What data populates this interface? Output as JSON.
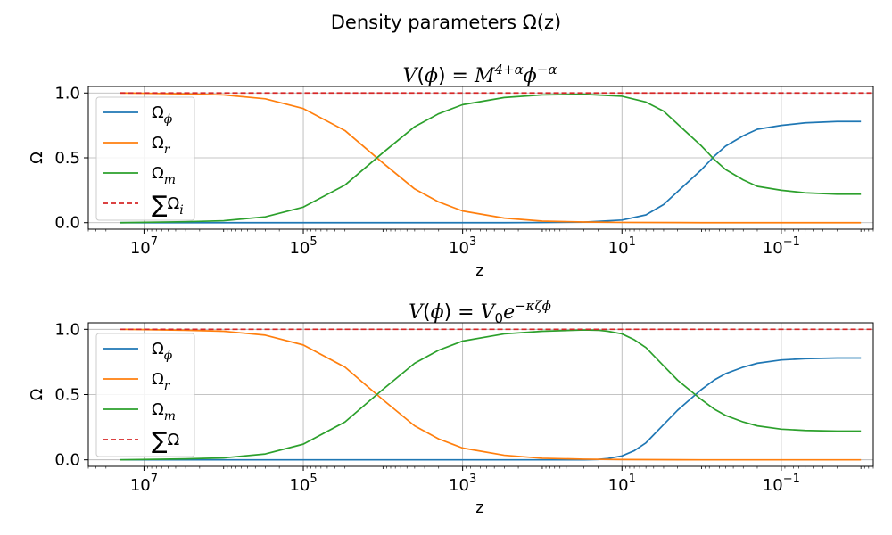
{
  "figure": {
    "suptitle": "Density parameters Ω(z)"
  },
  "colors": {
    "omega_phi": "#1f77b4",
    "omega_r": "#ff7f0e",
    "omega_m": "#2ca02c",
    "sum": "#d62728",
    "grid": "#b0b0b0"
  },
  "chart_data": [
    {
      "type": "line",
      "title": "V(ϕ) = M^(4+α) ϕ^(−α)",
      "xlabel": "z",
      "ylabel": "Ω",
      "xscale": "log",
      "x_reversed": true,
      "xlim": [
        50000000,
        0.007
      ],
      "ylim": [
        -0.05,
        1.05
      ],
      "xticks": [
        "10^7",
        "10^5",
        "10^3",
        "10^1",
        "10^−1"
      ],
      "yticks": [
        "0.0",
        "0.5",
        "1.0"
      ],
      "grid": true,
      "legend_position": "upper-left",
      "series": [
        {
          "name": "Ω_ϕ",
          "color": "#1f77b4",
          "style": "solid",
          "x": [
            20000000,
            10000,
            1000,
            300,
            100,
            30,
            10,
            5,
            3,
            2,
            1,
            0.7,
            0.5,
            0.3,
            0.2,
            0.1,
            0.05,
            0.02,
            0.01
          ],
          "y": [
            0.0,
            0.0,
            0.0,
            0.0,
            0.001,
            0.004,
            0.02,
            0.06,
            0.14,
            0.24,
            0.41,
            0.51,
            0.59,
            0.67,
            0.72,
            0.75,
            0.77,
            0.78,
            0.78
          ]
        },
        {
          "name": "Ω_r",
          "color": "#ff7f0e",
          "style": "solid",
          "x": [
            20000000,
            10000000,
            3000000,
            1000000,
            300000,
            100000,
            30000,
            10000,
            4000,
            2000,
            1000,
            300,
            100,
            30,
            10,
            1,
            0.1,
            0.01
          ],
          "y": [
            1.0,
            0.998,
            0.993,
            0.985,
            0.955,
            0.88,
            0.71,
            0.46,
            0.26,
            0.16,
            0.09,
            0.035,
            0.012,
            0.005,
            0.002,
            0.0,
            0.0,
            0.0
          ]
        },
        {
          "name": "Ω_m",
          "color": "#2ca02c",
          "style": "solid",
          "x": [
            20000000,
            3000000,
            1000000,
            300000,
            100000,
            30000,
            10000,
            4000,
            2000,
            1000,
            300,
            100,
            30,
            10,
            5,
            3,
            2,
            1,
            0.7,
            0.5,
            0.3,
            0.2,
            0.1,
            0.05,
            0.02,
            0.01
          ],
          "y": [
            0.0,
            0.007,
            0.015,
            0.045,
            0.12,
            0.29,
            0.54,
            0.74,
            0.84,
            0.91,
            0.965,
            0.985,
            0.99,
            0.975,
            0.93,
            0.86,
            0.76,
            0.59,
            0.49,
            0.41,
            0.33,
            0.28,
            0.25,
            0.23,
            0.22,
            0.22
          ]
        },
        {
          "name": "∑Ω_i",
          "color": "#d62728",
          "style": "dashed",
          "x": [
            20000000,
            0.007
          ],
          "y": [
            1.0,
            1.0
          ]
        }
      ]
    },
    {
      "type": "line",
      "title": "V(ϕ) = V₀ e^(−κζϕ)",
      "xlabel": "z",
      "ylabel": "Ω",
      "xscale": "log",
      "x_reversed": true,
      "xlim": [
        50000000,
        0.007
      ],
      "ylim": [
        -0.05,
        1.05
      ],
      "xticks": [
        "10^7",
        "10^5",
        "10^3",
        "10^1",
        "10^−1"
      ],
      "yticks": [
        "0.0",
        "0.5",
        "1.0"
      ],
      "grid": true,
      "legend_position": "upper-left",
      "series": [
        {
          "name": "Ω_ϕ",
          "color": "#1f77b4",
          "style": "solid",
          "x": [
            20000000,
            100,
            30,
            20,
            15,
            10,
            7,
            5,
            3,
            2,
            1,
            0.7,
            0.5,
            0.3,
            0.2,
            0.1,
            0.05,
            0.02,
            0.01
          ],
          "y": [
            0.0,
            0.0,
            0.0,
            0.003,
            0.01,
            0.03,
            0.07,
            0.13,
            0.27,
            0.38,
            0.54,
            0.61,
            0.66,
            0.71,
            0.74,
            0.765,
            0.775,
            0.78,
            0.78
          ]
        },
        {
          "name": "Ω_r",
          "color": "#ff7f0e",
          "style": "solid",
          "x": [
            20000000,
            10000000,
            3000000,
            1000000,
            300000,
            100000,
            30000,
            10000,
            4000,
            2000,
            1000,
            300,
            100,
            30,
            10,
            1,
            0.1,
            0.01
          ],
          "y": [
            1.0,
            0.998,
            0.993,
            0.985,
            0.955,
            0.88,
            0.71,
            0.46,
            0.26,
            0.16,
            0.09,
            0.035,
            0.012,
            0.005,
            0.002,
            0.0,
            0.0,
            0.0
          ]
        },
        {
          "name": "Ω_m",
          "color": "#2ca02c",
          "style": "solid",
          "x": [
            20000000,
            3000000,
            1000000,
            300000,
            100000,
            30000,
            10000,
            4000,
            2000,
            1000,
            300,
            100,
            30,
            20,
            15,
            10,
            7,
            5,
            3,
            2,
            1,
            0.7,
            0.5,
            0.3,
            0.2,
            0.1,
            0.05,
            0.02,
            0.01
          ],
          "y": [
            0.0,
            0.007,
            0.015,
            0.045,
            0.12,
            0.29,
            0.54,
            0.74,
            0.84,
            0.91,
            0.965,
            0.985,
            0.995,
            0.993,
            0.985,
            0.965,
            0.92,
            0.86,
            0.72,
            0.61,
            0.46,
            0.39,
            0.34,
            0.29,
            0.26,
            0.235,
            0.225,
            0.22,
            0.22
          ]
        },
        {
          "name": "∑Ω",
          "color": "#d62728",
          "style": "dashed",
          "x": [
            20000000,
            0.007
          ],
          "y": [
            1.0,
            1.0
          ]
        }
      ]
    }
  ]
}
